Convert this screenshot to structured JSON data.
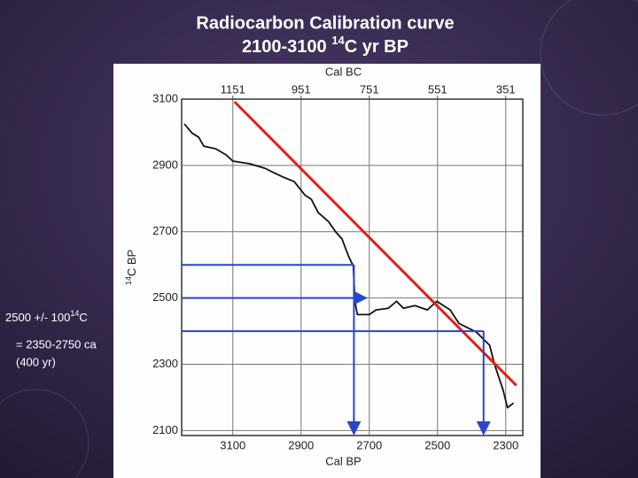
{
  "chart_data": {
    "type": "line",
    "title": [
      "Radiocarbon Calibration curve",
      "2100-3100 ",
      "14",
      "C yr BP"
    ],
    "x_label": "Cal BP",
    "x2_label": "Cal BC",
    "y_label": [
      "14",
      "C BP"
    ],
    "xlim": [
      3250,
      2250
    ],
    "xticks": [
      3100,
      2900,
      2700,
      2500,
      2300
    ],
    "x2lim": [
      1301,
      301
    ],
    "x2ticks": [
      1151,
      951,
      751,
      551,
      351
    ],
    "ylim": [
      2085,
      3100
    ],
    "yticks": [
      2100,
      2300,
      2500,
      2700,
      2900,
      3100
    ],
    "grid": true,
    "series": [
      {
        "color": "#111111",
        "x": [
          3242,
          3220,
          3200,
          3185,
          3150,
          3120,
          3100,
          3050,
          3005,
          2980,
          2953,
          2920,
          2889,
          2870,
          2850,
          2820,
          2798,
          2780,
          2760,
          2747,
          2742,
          2735,
          2700,
          2680,
          2644,
          2620,
          2600,
          2566,
          2530,
          2502,
          2463,
          2437,
          2386,
          2347,
          2334,
          2308,
          2295,
          2277
        ],
        "values": [
          3025,
          2998,
          2985,
          2958,
          2950,
          2932,
          2913,
          2905,
          2891,
          2878,
          2865,
          2851,
          2811,
          2798,
          2758,
          2731,
          2699,
          2678,
          2624,
          2597,
          2490,
          2450,
          2450,
          2464,
          2469,
          2490,
          2469,
          2477,
          2464,
          2490,
          2464,
          2423,
          2397,
          2357,
          2303,
          2223,
          2169,
          2183
        ]
      },
      {
        "color": "#e0201c",
        "x": [
          3095,
          2269
        ],
        "values": [
          3092,
          2236
        ]
      }
    ],
    "guides": {
      "color": "#2746c8",
      "items": [
        {
          "y": 2600,
          "x": 2745,
          "down": true
        },
        {
          "y": 2500,
          "x": 2710,
          "down": false
        },
        {
          "y": 2400,
          "x": 2365,
          "down": true
        }
      ]
    },
    "annotation": {
      "line1": [
        "2500 +/- 100",
        "14",
        "C"
      ],
      "line2": "= 2350-2750 ca",
      "line3": "(400 yr)"
    }
  }
}
